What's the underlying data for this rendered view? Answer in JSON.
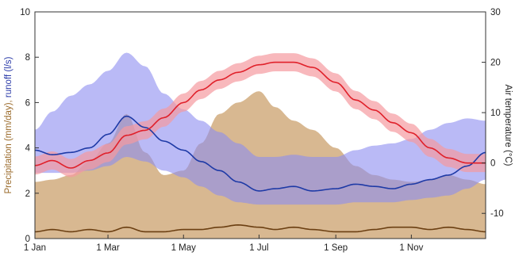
{
  "chart_data": {
    "type": "line",
    "title": "",
    "x_ticks": [
      "1 Jan",
      "1 Mar",
      "1 May",
      "1 Jul",
      "1 Sep",
      "1 Nov"
    ],
    "x_tick_days": [
      1,
      60,
      121,
      182,
      244,
      305
    ],
    "x_range": [
      1,
      365
    ],
    "left_axis": {
      "label_parts": [
        {
          "text": "Precipitation (mm/day), ",
          "color": "#9a6a2a"
        },
        {
          "text": "runoff (l/s)",
          "color": "#2a3aa8"
        }
      ],
      "range": [
        0,
        10
      ],
      "ticks": [
        "0",
        "2",
        "4",
        "6",
        "8",
        "10"
      ]
    },
    "right_axis": {
      "label": "Air temperature (°C)",
      "label_color": "#d8262e",
      "range": [
        -15,
        30
      ],
      "ticks": [
        "-10",
        "0",
        "10",
        "20",
        "30"
      ]
    },
    "series": [
      {
        "name": "Precipitation",
        "axis": "left",
        "color": "#6b3f12",
        "band_color": "#c89a62",
        "x": [
          1,
          15,
          30,
          45,
          60,
          75,
          90,
          105,
          121,
          135,
          150,
          165,
          182,
          195,
          210,
          225,
          244,
          260,
          275,
          290,
          305,
          320,
          335,
          350,
          365
        ],
        "mean": [
          0.3,
          0.4,
          0.3,
          0.4,
          0.3,
          0.5,
          0.3,
          0.3,
          0.4,
          0.4,
          0.5,
          0.6,
          0.5,
          0.4,
          0.5,
          0.4,
          0.3,
          0.3,
          0.4,
          0.5,
          0.5,
          0.4,
          0.5,
          0.4,
          0.3
        ],
        "band_upper": [
          2.5,
          2.6,
          2.8,
          3.4,
          4.2,
          5.5,
          3.8,
          2.8,
          3.0,
          4.2,
          5.5,
          6.0,
          6.5,
          5.8,
          5.2,
          4.8,
          4.0,
          3.2,
          2.8,
          2.6,
          2.5,
          2.6,
          2.8,
          2.6,
          2.4
        ]
      },
      {
        "name": "runoff",
        "axis": "left",
        "color": "#1e3aa6",
        "band_color": "#8c8cf0",
        "x": [
          1,
          15,
          30,
          45,
          60,
          75,
          90,
          105,
          121,
          135,
          150,
          165,
          182,
          195,
          210,
          225,
          244,
          260,
          275,
          290,
          305,
          320,
          335,
          350,
          365
        ],
        "mean": [
          3.9,
          3.7,
          3.8,
          4.0,
          4.6,
          5.4,
          4.9,
          4.3,
          3.9,
          3.4,
          3.0,
          2.5,
          2.1,
          2.2,
          2.3,
          2.1,
          2.2,
          2.4,
          2.3,
          2.2,
          2.4,
          2.6,
          2.8,
          3.2,
          3.8
        ],
        "band_lower": [
          2.9,
          2.9,
          2.9,
          3.0,
          3.2,
          3.6,
          3.4,
          3.0,
          2.7,
          2.3,
          1.9,
          1.6,
          1.5,
          1.5,
          1.5,
          1.5,
          1.5,
          1.6,
          1.6,
          1.6,
          1.7,
          1.8,
          1.9,
          2.2,
          2.6
        ],
        "band_upper": [
          4.8,
          5.6,
          6.3,
          6.8,
          7.4,
          8.2,
          7.6,
          6.4,
          5.7,
          5.2,
          4.7,
          4.2,
          3.6,
          3.6,
          3.7,
          3.6,
          3.6,
          3.9,
          4.1,
          4.2,
          4.4,
          4.8,
          5.1,
          5.3,
          5.2
        ]
      },
      {
        "name": "Air temperature",
        "axis": "right",
        "color": "#e0202a",
        "band_color": "#f59aa0",
        "x": [
          1,
          15,
          30,
          45,
          60,
          75,
          90,
          105,
          121,
          135,
          150,
          165,
          182,
          195,
          210,
          225,
          244,
          260,
          275,
          290,
          305,
          320,
          335,
          350,
          365
        ],
        "mean": [
          -0.5,
          0.5,
          -1.0,
          0.5,
          2.0,
          5.5,
          6.5,
          9.0,
          12.0,
          14.5,
          16.5,
          18.0,
          19.5,
          20.0,
          20.0,
          19.0,
          16.0,
          12.5,
          10.5,
          8.0,
          6.0,
          3.0,
          1.0,
          0.0,
          0.0
        ],
        "spread": 1.8
      }
    ],
    "legend": "none",
    "grid": false
  }
}
